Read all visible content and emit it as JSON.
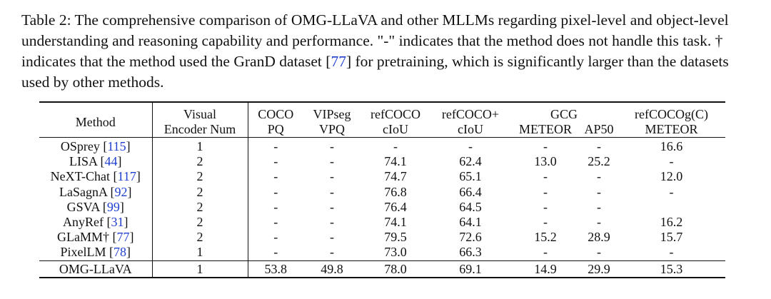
{
  "caption": {
    "label": "Table 2:",
    "text_a": " The comprehensive comparison of OMG-LLaVA and other MLLMs regarding pixel-level and object-level understanding and reasoning capability and performance. \"-\" indicates that the method does not handle this task. † indicates that the method used the GranD dataset [",
    "ref": "77",
    "text_b": "] for pretraining, which is significantly larger than the datasets used by other methods."
  },
  "table": {
    "headers": {
      "method": "Method",
      "encoder_1": "Visual",
      "encoder_2": "Encoder Num",
      "coco_1": "COCO",
      "coco_2": "PQ",
      "vipseg_1": "VIPseg",
      "vipseg_2": "VPQ",
      "refcoco_1": "refCOCO",
      "refcoco_2": "cIoU",
      "refcocop_1": "refCOCO+",
      "refcocop_2": "cIoU",
      "gcg": "GCG",
      "gcg_meteor": "METEOR",
      "gcg_ap50": "AP50",
      "refcocog_1": "refCOCOg(C)",
      "refcocog_2": "METEOR"
    },
    "rows": [
      {
        "method": "OSprey [",
        "ref": "115",
        "close": "]",
        "enc": "1",
        "coco": "-",
        "vipseg": "-",
        "refcoco": "-",
        "refcocop": "-",
        "meteor": "-",
        "ap50": "-",
        "refcocog": "16.6"
      },
      {
        "method": "LISA [",
        "ref": "44",
        "close": "]",
        "enc": "2",
        "coco": "-",
        "vipseg": "-",
        "refcoco": "74.1",
        "refcocop": "62.4",
        "meteor": "13.0",
        "ap50": "25.2",
        "refcocog": "-"
      },
      {
        "method": "NeXT-Chat [",
        "ref": "117",
        "close": "]",
        "enc": "2",
        "coco": "-",
        "vipseg": "-",
        "refcoco": "74.7",
        "refcocop": "65.1",
        "meteor": "-",
        "ap50": "-",
        "refcocog": "12.0"
      },
      {
        "method": "LaSagnA [",
        "ref": "92",
        "close": "]",
        "enc": "2",
        "coco": "-",
        "vipseg": "-",
        "refcoco": "76.8",
        "refcocop": "66.4",
        "meteor": "-",
        "ap50": "-",
        "refcocog": "-"
      },
      {
        "method": "GSVA [",
        "ref": "99",
        "close": "]",
        "enc": "2",
        "coco": "-",
        "vipseg": "-",
        "refcoco": "76.4",
        "refcocop": "64.5",
        "meteor": "-",
        "ap50": "-",
        "refcocog": ""
      },
      {
        "method": "AnyRef [",
        "ref": "31",
        "close": "]",
        "enc": "2",
        "coco": "-",
        "vipseg": "-",
        "refcoco": "74.1",
        "refcocop": "64.1",
        "meteor": "-",
        "ap50": "-",
        "refcocog": "16.2"
      },
      {
        "method": "GLaMM† [",
        "ref": "77",
        "close": "]",
        "enc": "2",
        "coco": "-",
        "vipseg": "-",
        "refcoco": "79.5",
        "refcocop": "72.6",
        "meteor": "15.2",
        "ap50": "28.9",
        "refcocog": "15.7"
      },
      {
        "method": "PixelLM [",
        "ref": "78",
        "close": "]",
        "enc": "1",
        "coco": "-",
        "vipseg": "-",
        "refcoco": "73.0",
        "refcocop": "66.3",
        "meteor": "-",
        "ap50": "-",
        "refcocog": "-"
      }
    ],
    "final": {
      "method": "OMG-LLaVA",
      "enc": "1",
      "coco": "53.8",
      "vipseg": "49.8",
      "refcoco": "78.0",
      "refcocop": "69.1",
      "meteor": "14.9",
      "ap50": "29.9",
      "refcocog": "15.3"
    }
  }
}
